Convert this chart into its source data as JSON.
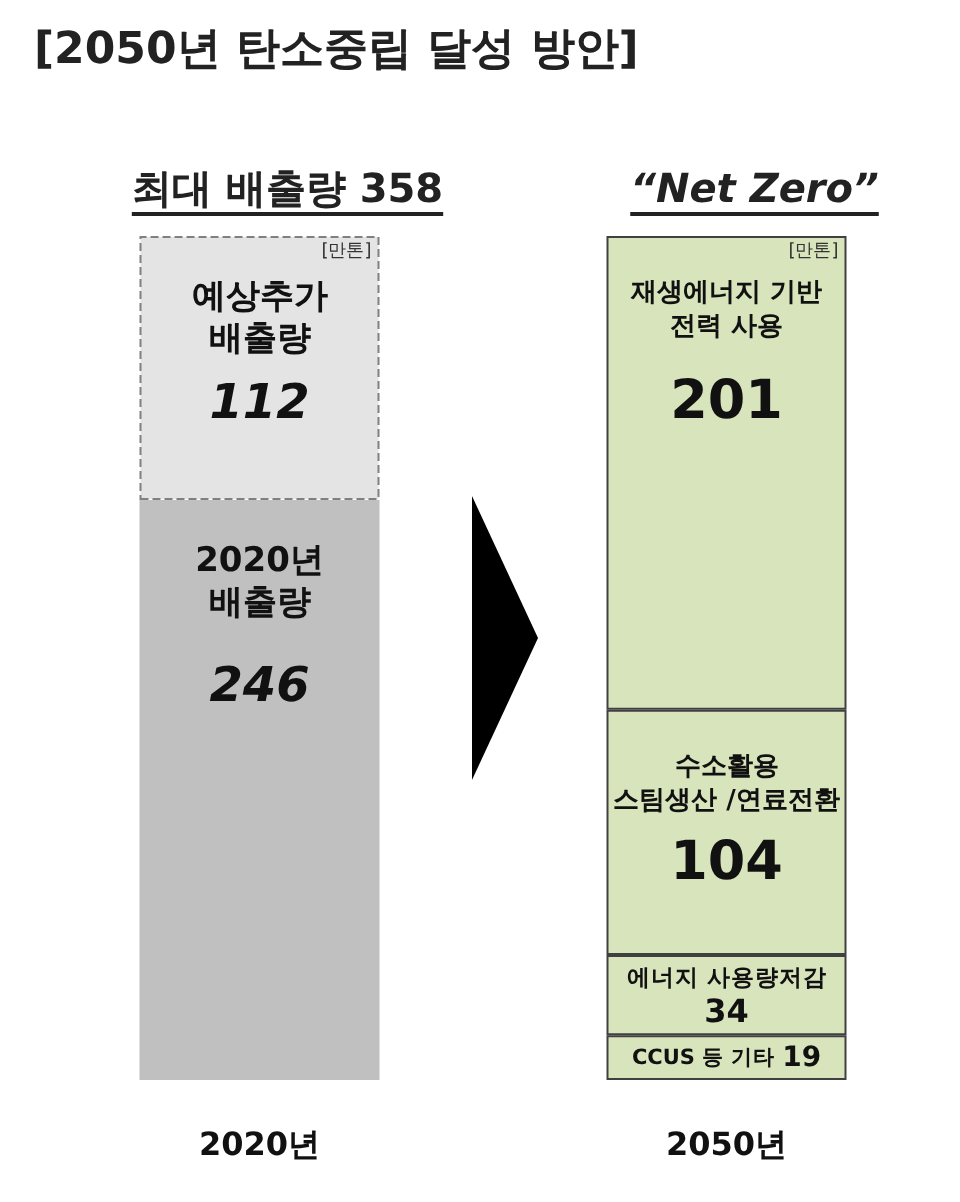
{
  "chart_data": {
    "type": "bar",
    "title": "[2050년 탄소중립 달성 방안]",
    "categories": [
      "2020년",
      "2050년"
    ],
    "stacked": true,
    "data_labels": true,
    "series": [
      {
        "name": "2020년\n배출량",
        "color": "#c0c0c0",
        "values": [
          246,
          null
        ]
      },
      {
        "name": "예상추가\n배출량",
        "color": "#e4e4e4",
        "line_style": "dashed",
        "values": [
          112,
          null
        ]
      },
      {
        "name": "CCUS 등 기타",
        "color": "#d8e4bc",
        "line_style": "solid",
        "values": [
          null,
          19
        ]
      },
      {
        "name": "에너지 사용량저감",
        "color": "#d8e4bc",
        "line_style": "solid",
        "values": [
          null,
          34
        ]
      },
      {
        "name": "수소활용\n스팀생산 /연료전환",
        "color": "#d8e4bc",
        "line_style": "solid",
        "values": [
          null,
          104
        ]
      },
      {
        "name": "재생에너지 기반\n전력 사용",
        "color": "#d8e4bc",
        "line_style": "solid",
        "values": [
          null,
          201
        ]
      }
    ],
    "totals": [
      "최대 배출량 358",
      "“Net Zero”"
    ],
    "annotations": [
      "[만톤]",
      "[만톤]"
    ]
  }
}
